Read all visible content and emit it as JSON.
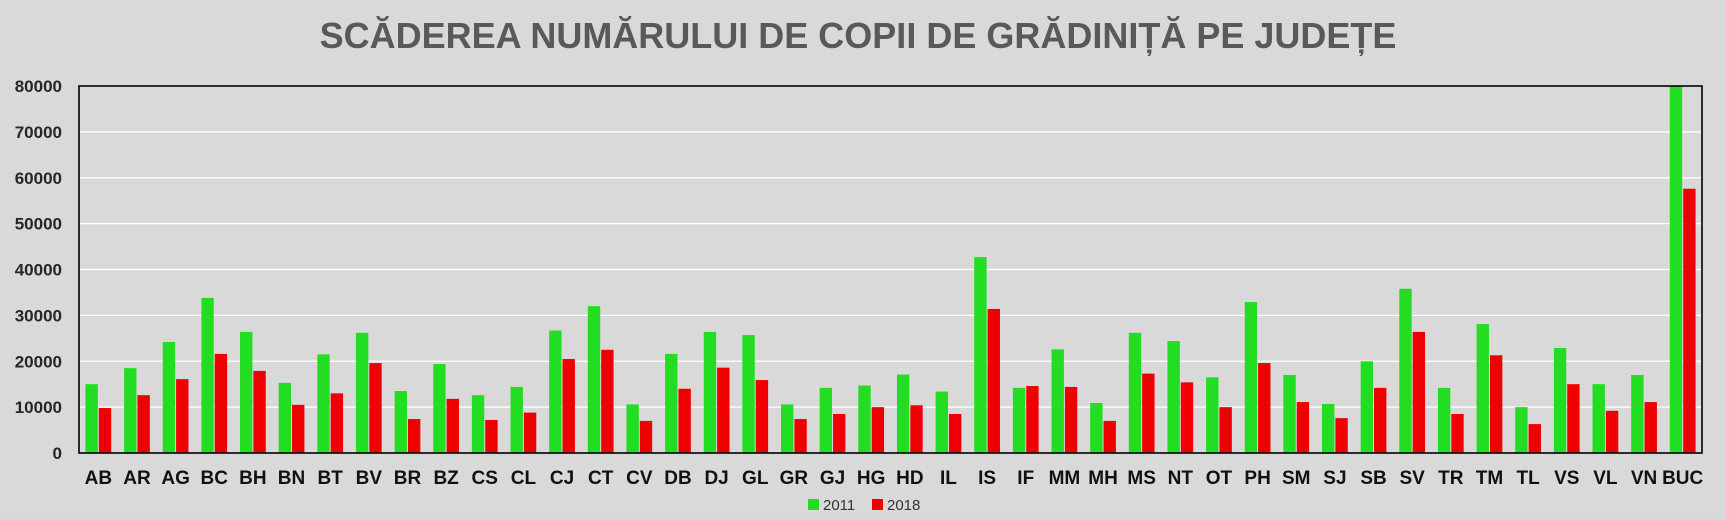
{
  "chart_data": {
    "type": "bar",
    "title": "SCĂDEREA NUMĂRULUI DE COPII DE GRĂDINIȚĂ PE JUDEȚE",
    "xlabel": "",
    "ylabel": "",
    "ylim": [
      0,
      80000
    ],
    "yticks": [
      0,
      10000,
      20000,
      30000,
      40000,
      50000,
      60000,
      70000,
      80000
    ],
    "grid": true,
    "legend_position": "bottom",
    "categories": [
      "AB",
      "AR",
      "AG",
      "BC",
      "BH",
      "BN",
      "BT",
      "BV",
      "BR",
      "BZ",
      "CS",
      "CL",
      "CJ",
      "CT",
      "CV",
      "DB",
      "DJ",
      "GL",
      "GR",
      "GJ",
      "HG",
      "HD",
      "IL",
      "IS",
      "IF",
      "MM",
      "MH",
      "MS",
      "NT",
      "OT",
      "PH",
      "SM",
      "SJ",
      "SB",
      "SV",
      "TR",
      "TM",
      "TL",
      "VS",
      "VL",
      "VN",
      "BUC"
    ],
    "series": [
      {
        "name": "2011",
        "color": "#22dd22",
        "values": [
          15000,
          18500,
          24200,
          33800,
          26400,
          15300,
          21500,
          26200,
          13500,
          19400,
          12600,
          14400,
          26700,
          32000,
          10600,
          21600,
          26400,
          25700,
          10600,
          14200,
          14700,
          17100,
          13400,
          42700,
          14200,
          22600,
          10900,
          26200,
          24400,
          16500,
          32900,
          17000,
          10700,
          20000,
          35800,
          14200,
          28100,
          10000,
          22900,
          15000,
          17000,
          80000
        ]
      },
      {
        "name": "2018",
        "color": "#ee0000",
        "values": [
          9800,
          12600,
          16100,
          21600,
          17900,
          10500,
          13000,
          19600,
          7400,
          11800,
          7200,
          8800,
          20500,
          22500,
          7000,
          14000,
          18600,
          15900,
          7400,
          8500,
          10000,
          10400,
          8500,
          31400,
          14600,
          14400,
          7000,
          17300,
          15400,
          10000,
          19600,
          11100,
          7600,
          14200,
          26400,
          8500,
          21300,
          6300,
          15000,
          9200,
          11100,
          57600
        ]
      }
    ]
  }
}
